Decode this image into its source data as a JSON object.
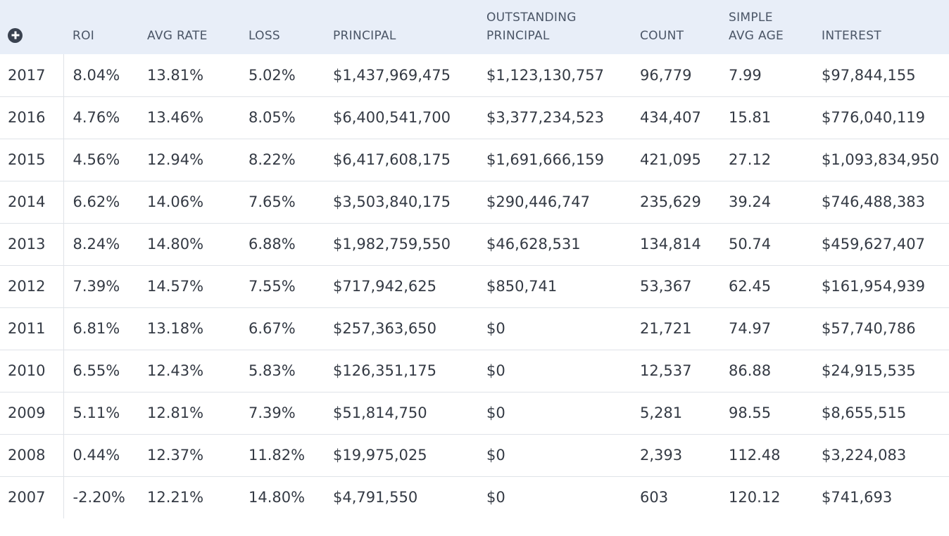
{
  "table": {
    "add_icon": "plus-circle-icon",
    "columns": [
      {
        "key": "roi",
        "lines": [
          "ROI"
        ]
      },
      {
        "key": "avg_rate",
        "lines": [
          "AVG RATE"
        ]
      },
      {
        "key": "loss",
        "lines": [
          "LOSS"
        ]
      },
      {
        "key": "principal",
        "lines": [
          "PRINCIPAL"
        ]
      },
      {
        "key": "outstanding_principal",
        "lines": [
          "OUTSTANDING",
          "PRINCIPAL"
        ]
      },
      {
        "key": "count",
        "lines": [
          "COUNT"
        ]
      },
      {
        "key": "simple_avg_age",
        "lines": [
          "SIMPLE",
          "AVG AGE"
        ]
      },
      {
        "key": "interest",
        "lines": [
          "INTEREST"
        ]
      }
    ],
    "rows": [
      {
        "year": "2017",
        "roi": "8.04%",
        "avg_rate": "13.81%",
        "loss": "5.02%",
        "principal": "$1,437,969,475",
        "outstanding_principal": "$1,123,130,757",
        "count": "96,779",
        "simple_avg_age": "7.99",
        "interest": "$97,844,155"
      },
      {
        "year": "2016",
        "roi": "4.76%",
        "avg_rate": "13.46%",
        "loss": "8.05%",
        "principal": "$6,400,541,700",
        "outstanding_principal": "$3,377,234,523",
        "count": "434,407",
        "simple_avg_age": "15.81",
        "interest": "$776,040,119"
      },
      {
        "year": "2015",
        "roi": "4.56%",
        "avg_rate": "12.94%",
        "loss": "8.22%",
        "principal": "$6,417,608,175",
        "outstanding_principal": "$1,691,666,159",
        "count": "421,095",
        "simple_avg_age": "27.12",
        "interest": "$1,093,834,950"
      },
      {
        "year": "2014",
        "roi": "6.62%",
        "avg_rate": "14.06%",
        "loss": "7.65%",
        "principal": "$3,503,840,175",
        "outstanding_principal": "$290,446,747",
        "count": "235,629",
        "simple_avg_age": "39.24",
        "interest": "$746,488,383"
      },
      {
        "year": "2013",
        "roi": "8.24%",
        "avg_rate": "14.80%",
        "loss": "6.88%",
        "principal": "$1,982,759,550",
        "outstanding_principal": "$46,628,531",
        "count": "134,814",
        "simple_avg_age": "50.74",
        "interest": "$459,627,407"
      },
      {
        "year": "2012",
        "roi": "7.39%",
        "avg_rate": "14.57%",
        "loss": "7.55%",
        "principal": "$717,942,625",
        "outstanding_principal": "$850,741",
        "count": "53,367",
        "simple_avg_age": "62.45",
        "interest": "$161,954,939"
      },
      {
        "year": "2011",
        "roi": "6.81%",
        "avg_rate": "13.18%",
        "loss": "6.67%",
        "principal": "$257,363,650",
        "outstanding_principal": "$0",
        "count": "21,721",
        "simple_avg_age": "74.97",
        "interest": "$57,740,786"
      },
      {
        "year": "2010",
        "roi": "6.55%",
        "avg_rate": "12.43%",
        "loss": "5.83%",
        "principal": "$126,351,175",
        "outstanding_principal": "$0",
        "count": "12,537",
        "simple_avg_age": "86.88",
        "interest": "$24,915,535"
      },
      {
        "year": "2009",
        "roi": "5.11%",
        "avg_rate": "12.81%",
        "loss": "7.39%",
        "principal": "$51,814,750",
        "outstanding_principal": "$0",
        "count": "5,281",
        "simple_avg_age": "98.55",
        "interest": "$8,655,515"
      },
      {
        "year": "2008",
        "roi": "0.44%",
        "avg_rate": "12.37%",
        "loss": "11.82%",
        "principal": "$19,975,025",
        "outstanding_principal": "$0",
        "count": "2,393",
        "simple_avg_age": "112.48",
        "interest": "$3,224,083"
      },
      {
        "year": "2007",
        "roi": "-2.20%",
        "avg_rate": "12.21%",
        "loss": "14.80%",
        "principal": "$4,791,550",
        "outstanding_principal": "$0",
        "count": "603",
        "simple_avg_age": "120.12",
        "interest": "$741,693"
      }
    ]
  }
}
